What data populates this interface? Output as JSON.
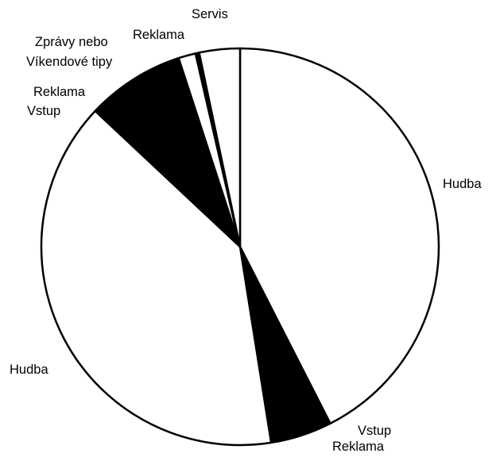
{
  "chart_data": {
    "type": "pie",
    "start_angle_deg": 0,
    "direction": "clockwise",
    "colors": {
      "white": "#ffffff",
      "black": "#000000",
      "stroke": "#000000"
    },
    "slices": [
      {
        "label": "Hudba",
        "value": 42.5,
        "fill": "white"
      },
      {
        "label": "Vstup Reklama",
        "value": 5.0,
        "fill": "black"
      },
      {
        "label": "Hudba",
        "value": 39.5,
        "fill": "white"
      },
      {
        "label": "Reklama Vstup",
        "value": 8.0,
        "fill": "black"
      },
      {
        "label": "Zprávy nebo Víkendové tipy",
        "value": 1.4,
        "fill": "white"
      },
      {
        "label": "Reklama",
        "value": 0.3,
        "fill": "black"
      },
      {
        "label": "Servis",
        "value": 3.3,
        "fill": "white"
      }
    ],
    "labels": {
      "hudba_right": "Hudba",
      "vstup_bottom": "Vstup",
      "reklama_bottom": "Reklama",
      "hudba_left": "Hudba",
      "reklama_left": "Reklama",
      "vstup_left": "Vstup",
      "zpravy": "Zprávy nebo",
      "vikendove": "Víkendové tipy",
      "reklama_top": "Reklama",
      "servis": "Servis"
    }
  }
}
